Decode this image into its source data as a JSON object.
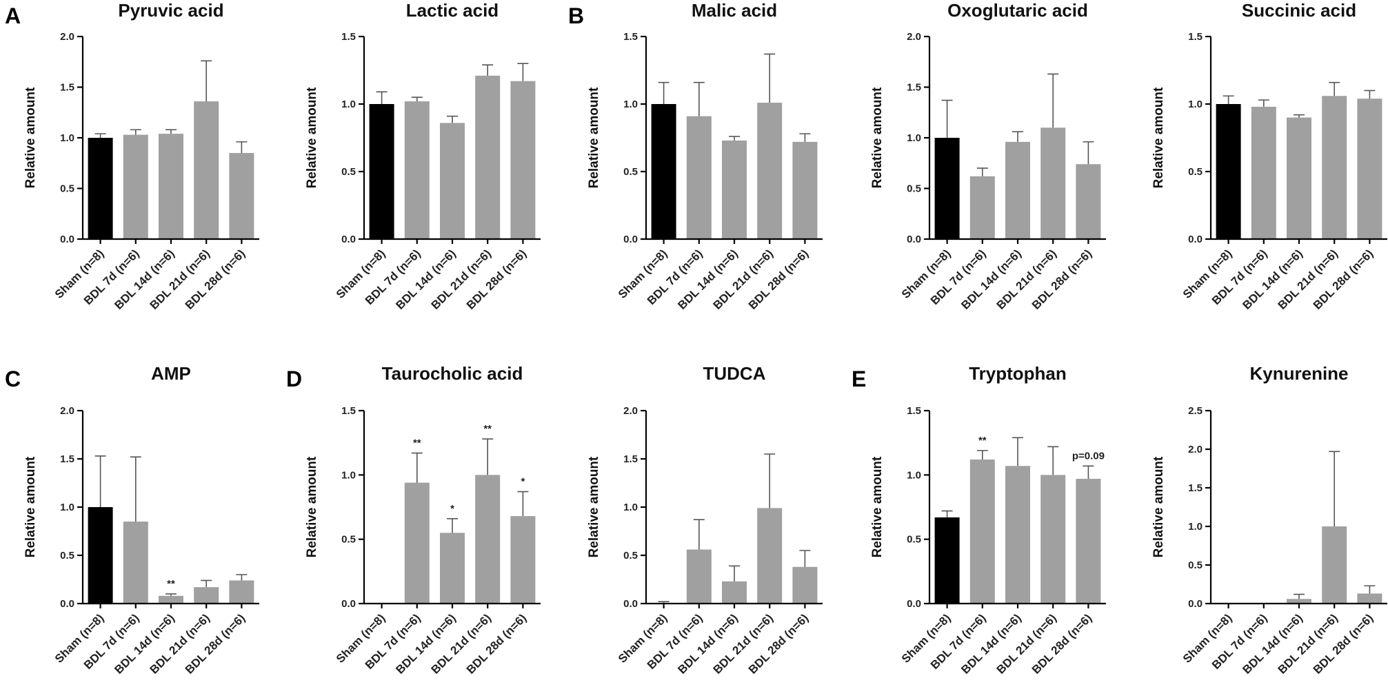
{
  "figure": {
    "panel_letters": [
      "A",
      "B",
      "C",
      "D",
      "E"
    ],
    "colors": {
      "sham": "#000000",
      "bdl": "#a0a0a0",
      "error": "#555555",
      "axis": "#000000"
    }
  },
  "chart_data": [
    {
      "type": "bar",
      "letter": "A",
      "title": "Pyruvic acid",
      "ylabel": "Relative amount",
      "categories": [
        "Sham (n=8)",
        "BDL 7d (n=6)",
        "BDL 14d (n=6)",
        "BDL 21d (n=6)",
        "BDL 28d (n=6)"
      ],
      "values": [
        1.0,
        1.03,
        1.04,
        1.36,
        0.85
      ],
      "errors": [
        0.04,
        0.05,
        0.04,
        0.4,
        0.11
      ],
      "ylim": [
        0,
        2.0
      ],
      "ticks": [
        "0.0",
        "0.5",
        "1.0",
        "1.5",
        "2.0"
      ],
      "annotations": [
        "",
        "",
        "",
        "",
        ""
      ]
    },
    {
      "type": "bar",
      "letter": "",
      "title": "Lactic acid",
      "ylabel": "Relative amount",
      "categories": [
        "Sham (n=8)",
        "BDL 7d (n=6)",
        "BDL 14d (n=6)",
        "BDL 21d (n=6)",
        "BDL 28d (n=6)"
      ],
      "values": [
        1.0,
        1.02,
        0.86,
        1.21,
        1.17
      ],
      "errors": [
        0.09,
        0.03,
        0.05,
        0.08,
        0.13
      ],
      "ylim": [
        0,
        1.5
      ],
      "ticks": [
        "0.0",
        "0.5",
        "1.0",
        "1.5"
      ],
      "annotations": [
        "",
        "",
        "",
        "",
        ""
      ]
    },
    {
      "type": "bar",
      "letter": "B",
      "title": "Malic acid",
      "ylabel": "Relative amount",
      "categories": [
        "Sham (n=8)",
        "BDL 7d (n=6)",
        "BDL 14d (n=6)",
        "BDL 21d (n=6)",
        "BDL 28d (n=6)"
      ],
      "values": [
        1.0,
        0.91,
        0.73,
        1.01,
        0.72
      ],
      "errors": [
        0.16,
        0.25,
        0.03,
        0.36,
        0.06
      ],
      "ylim": [
        0,
        1.5
      ],
      "ticks": [
        "0.0",
        "0.5",
        "1.0",
        "1.5"
      ],
      "annotations": [
        "",
        "",
        "",
        "",
        ""
      ]
    },
    {
      "type": "bar",
      "letter": "",
      "title": "Oxoglutaric acid",
      "ylabel": "Relative amount",
      "categories": [
        "Sham (n=8)",
        "BDL 7d (n=6)",
        "BDL 14d (n=6)",
        "BDL 21d (n=6)",
        "BDL 28d (n=6)"
      ],
      "values": [
        1.0,
        0.62,
        0.96,
        1.1,
        0.74
      ],
      "errors": [
        0.37,
        0.08,
        0.1,
        0.53,
        0.22
      ],
      "ylim": [
        0,
        2.0
      ],
      "ticks": [
        "0.0",
        "0.5",
        "1.0",
        "1.5",
        "2.0"
      ],
      "annotations": [
        "",
        "",
        "",
        "",
        ""
      ]
    },
    {
      "type": "bar",
      "letter": "",
      "title": "Succinic acid",
      "ylabel": "Relative amount",
      "categories": [
        "Sham (n=8)",
        "BDL 7d (n=6)",
        "BDL 14d (n=6)",
        "BDL 21d (n=6)",
        "BDL 28d (n=6)"
      ],
      "values": [
        1.0,
        0.98,
        0.9,
        1.06,
        1.04
      ],
      "errors": [
        0.06,
        0.05,
        0.02,
        0.1,
        0.06
      ],
      "ylim": [
        0,
        1.5
      ],
      "ticks": [
        "0.0",
        "0.5",
        "1.0",
        "1.5"
      ],
      "annotations": [
        "",
        "",
        "",
        "",
        ""
      ]
    },
    {
      "type": "bar",
      "letter": "C",
      "title": "AMP",
      "ylabel": "Relative amount",
      "categories": [
        "Sham (n=8)",
        "BDL 7d (n=6)",
        "BDL 14d (n=6)",
        "BDL 21d (n=6)",
        "BDL 28d (n=6)"
      ],
      "values": [
        1.0,
        0.85,
        0.08,
        0.17,
        0.24
      ],
      "errors": [
        0.53,
        0.67,
        0.02,
        0.07,
        0.06
      ],
      "ylim": [
        0,
        2.0
      ],
      "ticks": [
        "0.0",
        "0.5",
        "1.0",
        "1.5",
        "2.0"
      ],
      "annotations": [
        "",
        "",
        "**",
        "",
        ""
      ]
    },
    {
      "type": "bar",
      "letter": "D",
      "title": "Taurocholic acid",
      "ylabel": "Relative amount",
      "categories": [
        "Sham (n=8)",
        "BDL 7d (n=6)",
        "BDL 14d (n=6)",
        "BDL 21d (n=6)",
        "BDL 28d (n=6)"
      ],
      "values": [
        0.0,
        0.94,
        0.55,
        1.0,
        0.68
      ],
      "errors": [
        0.0,
        0.23,
        0.11,
        0.28,
        0.19
      ],
      "ylim": [
        0,
        1.5
      ],
      "ticks": [
        "0.0",
        "0.5",
        "1.0",
        "1.5"
      ],
      "annotations": [
        "",
        "**",
        "*",
        "**",
        "*"
      ]
    },
    {
      "type": "bar",
      "letter": "",
      "title": "TUDCA",
      "ylabel": "Relative amount",
      "categories": [
        "Sham (n=8)",
        "BDL 7d (n=6)",
        "BDL 14d (n=6)",
        "BDL 21d (n=6)",
        "BDL 28d (n=6)"
      ],
      "values": [
        0.0,
        0.56,
        0.23,
        0.99,
        0.38
      ],
      "errors": [
        0.02,
        0.31,
        0.16,
        0.56,
        0.17
      ],
      "ylim": [
        0,
        2.0
      ],
      "ticks": [
        "0.0",
        "0.5",
        "1.0",
        "1.5",
        "2.0"
      ],
      "annotations": [
        "",
        "",
        "",
        "",
        ""
      ]
    },
    {
      "type": "bar",
      "letter": "E",
      "title": "Tryptophan",
      "ylabel": "Relative amount",
      "categories": [
        "Sham (n=8)",
        "BDL 7d (n=6)",
        "BDL 14d (n=6)",
        "BDL 21d (n=6)",
        "BDL 28d (n=6)"
      ],
      "values": [
        0.67,
        1.12,
        1.07,
        1.0,
        0.97
      ],
      "errors": [
        0.05,
        0.07,
        0.22,
        0.22,
        0.1
      ],
      "ylim": [
        0,
        1.5
      ],
      "ticks": [
        "0.0",
        "0.5",
        "1.0",
        "1.5"
      ],
      "annotations": [
        "",
        "**",
        "",
        "",
        "p=0.09"
      ]
    },
    {
      "type": "bar",
      "letter": "",
      "title": "Kynurenine",
      "ylabel": "Relative amount",
      "categories": [
        "Sham (n=8)",
        "BDL 7d (n=6)",
        "BDL 14d (n=6)",
        "BDL 21d (n=6)",
        "BDL 28d (n=6)"
      ],
      "values": [
        0.0,
        0.0,
        0.06,
        1.0,
        0.13
      ],
      "errors": [
        0.0,
        0.0,
        0.06,
        0.97,
        0.1
      ],
      "ylim": [
        0,
        2.5
      ],
      "ticks": [
        "0.0",
        "0.5",
        "1.0",
        "1.5",
        "2.0",
        "2.5"
      ],
      "annotations": [
        "",
        "",
        "",
        "",
        ""
      ]
    }
  ]
}
